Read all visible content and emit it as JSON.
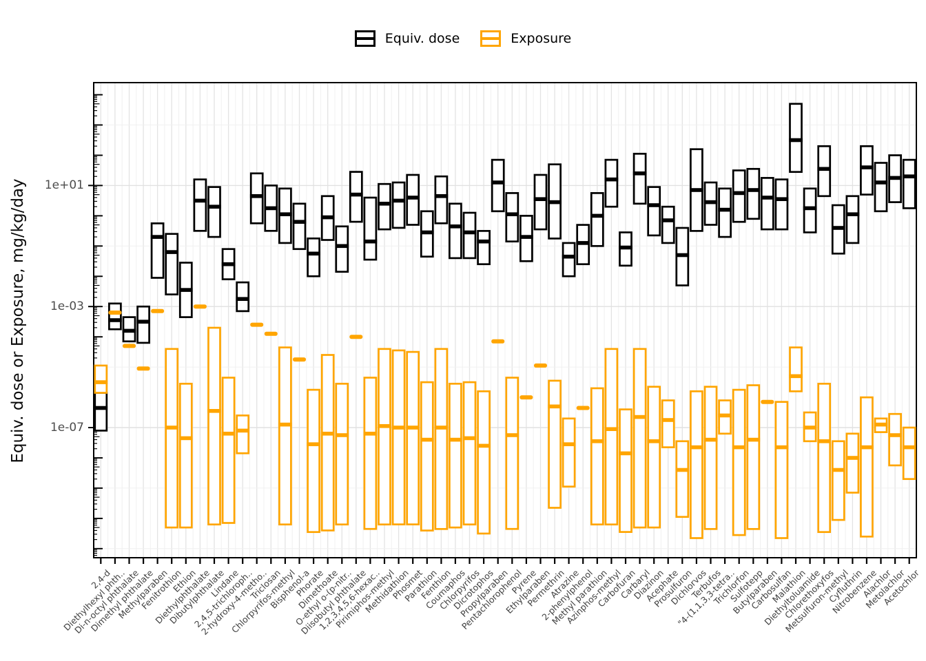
{
  "chart_data": {
    "type": "crossbar-boxplot",
    "title": "",
    "ylabel": "Equiv. dose or Exposure, mg/kg/day",
    "y_scale": "log10",
    "y_tick_labels": [
      "1e+01",
      "1e-03",
      "1e-07"
    ],
    "y_tick_exponents": [
      1,
      -3,
      -7
    ],
    "ylim_log10": [
      4.4,
      -11.3
    ],
    "grid_exponents": [
      3,
      1,
      -1,
      -3,
      -5,
      -7,
      -9,
      -11
    ],
    "legend_position": "top-center",
    "legend": [
      {
        "label": "Equiv. dose",
        "color": "#000000"
      },
      {
        "label": "Exposure",
        "color": "#FFA500"
      }
    ],
    "categories": [
      "2,4-d",
      "Diethylhexyl phth..",
      "Di-n-octyl phthalate",
      "Dimethyl phthalate",
      "Methylparaben",
      "Fenitrothion",
      "Ethion",
      "Diethylphthalate",
      "Dibutylphthalate",
      "Lindane",
      "2,4,5-trichloroph..",
      "2-hydroxy-4-metho..",
      "Triclosan",
      "Chlorpyrifos-methyl",
      "Bisphenol-a",
      "Phorate",
      "Dimethoate",
      "O-ethyl o-(p-nitr..",
      "Diisobutyl phthalate",
      "1,2,3,4,5,6-hexac..",
      "Pirimiphos-methyl",
      "Methidathion",
      "Phosmet",
      "Parathion",
      "Fenthion",
      "Coumaphos",
      "Chlorpyrifos",
      "Dicrotophos",
      "Propylparaben",
      "Pentachlorophenol",
      "Pyrene",
      "Ethylparaben",
      "Permethrin",
      "Atrazine",
      "2-phenylphenol",
      "Methyl parathion",
      "Azinphos-methyl",
      "Carbofuran",
      "Carbaryl",
      "Diazinon",
      "Acephate",
      "Prosulfuron",
      "Dichlorvos",
      "Terbufos",
      "\"4-(1,1,3,3-tetra..",
      "Trichlorfon",
      "Sulfotepp",
      "Butylparaben",
      "Carbosulfan",
      "Malathion",
      "Diethyltoluamide",
      "Chlorethoxyfos",
      "Metsulfuron-methyl",
      "Cyfluthrin",
      "Nitrobenzene",
      "Alachlor",
      "Metolachlor",
      "Acetochlor"
    ],
    "series": [
      {
        "name": "Equiv. dose",
        "color": "#000000",
        "boxes_log10": [
          [
            -7.1,
            -6.35,
            -5.85
          ],
          [
            -3.75,
            -3.45,
            -2.9
          ],
          [
            -4.15,
            -3.8,
            -3.35
          ],
          [
            -4.2,
            -3.5,
            -3.0
          ],
          [
            -2.05,
            -0.7,
            -0.25
          ],
          [
            -2.6,
            -1.2,
            -0.6
          ],
          [
            -3.35,
            -2.45,
            -1.55
          ],
          [
            -0.5,
            0.5,
            1.2
          ],
          [
            -0.7,
            0.3,
            0.95
          ],
          [
            -2.1,
            -1.6,
            -1.1
          ],
          [
            -3.15,
            -2.75,
            -2.2
          ],
          [
            -0.25,
            0.65,
            1.4
          ],
          [
            -0.5,
            0.25,
            1.0
          ],
          [
            -0.9,
            0.05,
            0.9
          ],
          [
            -1.1,
            -0.2,
            0.4
          ],
          [
            -2.0,
            -1.25,
            -0.75
          ],
          [
            -0.8,
            -0.05,
            0.65
          ],
          [
            -1.85,
            -1.0,
            -0.35
          ],
          [
            -0.2,
            0.7,
            1.45
          ],
          [
            -1.45,
            -0.85,
            0.6
          ],
          [
            -0.45,
            0.4,
            1.05
          ],
          [
            -0.4,
            0.5,
            1.1
          ],
          [
            -0.3,
            0.6,
            1.35
          ],
          [
            -1.35,
            -0.55,
            0.15
          ],
          [
            -0.25,
            0.65,
            1.3
          ],
          [
            -1.4,
            -0.35,
            0.4
          ],
          [
            -1.4,
            -0.55,
            0.1
          ],
          [
            -1.6,
            -0.85,
            -0.5
          ],
          [
            0.15,
            1.1,
            1.85
          ],
          [
            -0.85,
            0.05,
            0.75
          ],
          [
            -1.5,
            -0.7,
            0.0
          ],
          [
            -0.45,
            0.55,
            1.35
          ],
          [
            -0.75,
            0.45,
            1.7
          ],
          [
            -2.0,
            -1.35,
            -0.9
          ],
          [
            -1.6,
            -0.9,
            -0.3
          ],
          [
            -1.0,
            0.0,
            0.75
          ],
          [
            0.3,
            1.2,
            1.85
          ],
          [
            -1.65,
            -1.05,
            -0.55
          ],
          [
            0.4,
            1.4,
            2.05
          ],
          [
            -0.65,
            0.35,
            0.95
          ],
          [
            -0.9,
            -0.15,
            0.3
          ],
          [
            -2.3,
            -1.3,
            -0.4
          ],
          [
            -0.5,
            0.85,
            2.2
          ],
          [
            -0.3,
            0.45,
            1.1
          ],
          [
            -0.7,
            0.2,
            0.9
          ],
          [
            -0.2,
            0.75,
            1.5
          ],
          [
            -0.1,
            0.85,
            1.55
          ],
          [
            -0.45,
            0.6,
            1.25
          ],
          [
            -0.45,
            0.55,
            1.2
          ],
          [
            1.45,
            2.5,
            3.7
          ],
          [
            -0.55,
            0.25,
            0.9
          ],
          [
            0.65,
            1.55,
            2.3
          ],
          [
            -1.25,
            -0.4,
            0.35
          ],
          [
            -0.9,
            0.05,
            0.65
          ],
          [
            0.7,
            1.6,
            2.3
          ],
          [
            0.15,
            1.1,
            1.75
          ],
          [
            0.45,
            1.25,
            2.0
          ],
          [
            0.25,
            1.3,
            1.85
          ]
        ]
      },
      {
        "name": "Exposure",
        "color": "#FFA500",
        "boxes_log10": [
          [
            -5.85,
            -5.5,
            -4.95
          ],
          [
            -3.2,
            -3.2,
            -3.2
          ],
          [
            -4.3,
            -4.3,
            -4.3
          ],
          [
            -5.05,
            -5.05,
            -5.05
          ],
          [
            -3.15,
            -3.15,
            -3.15
          ],
          [
            -10.3,
            -7.0,
            -4.4
          ],
          [
            -10.3,
            -7.35,
            -5.55
          ],
          [
            -3.0,
            -3.0,
            -3.0
          ],
          [
            -10.2,
            -6.45,
            -3.7
          ],
          [
            -10.15,
            -7.2,
            -5.35
          ],
          [
            -7.85,
            -7.1,
            -6.6
          ],
          [
            -3.6,
            -3.6,
            -3.6
          ],
          [
            -3.9,
            -3.9,
            -3.9
          ],
          [
            -10.2,
            -6.9,
            -4.35
          ],
          [
            -4.75,
            -4.75,
            -4.75
          ],
          [
            -10.45,
            -7.55,
            -5.75
          ],
          [
            -10.4,
            -7.2,
            -4.6
          ],
          [
            -10.2,
            -7.25,
            -5.55
          ],
          [
            -4.0,
            -4.0,
            -4.0
          ],
          [
            -10.35,
            -7.2,
            -5.35
          ],
          [
            -10.2,
            -6.95,
            -4.4
          ],
          [
            -10.2,
            -7.0,
            -4.45
          ],
          [
            -10.2,
            -7.0,
            -4.5
          ],
          [
            -10.4,
            -7.4,
            -5.5
          ],
          [
            -10.35,
            -7.0,
            -4.4
          ],
          [
            -10.3,
            -7.4,
            -5.55
          ],
          [
            -10.2,
            -7.35,
            -5.5
          ],
          [
            -10.5,
            -7.6,
            -5.8
          ],
          [
            -4.15,
            -4.15,
            -4.15
          ],
          [
            -10.35,
            -7.25,
            -5.35
          ],
          [
            -6.0,
            -6.0,
            -6.0
          ],
          [
            -4.95,
            -4.95,
            -4.95
          ],
          [
            -9.65,
            -6.3,
            -5.45
          ],
          [
            -8.95,
            -7.55,
            -6.7
          ],
          [
            -6.35,
            -6.35,
            -6.35
          ],
          [
            -10.2,
            -7.45,
            -5.7
          ],
          [
            -10.2,
            -7.05,
            -4.4
          ],
          [
            -10.45,
            -7.85,
            -6.4
          ],
          [
            -10.3,
            -6.65,
            -4.4
          ],
          [
            -10.3,
            -7.45,
            -5.65
          ],
          [
            -7.65,
            -6.75,
            -6.1
          ],
          [
            -9.95,
            -8.4,
            -7.45
          ],
          [
            -10.65,
            -7.65,
            -5.8
          ],
          [
            -10.35,
            -7.4,
            -5.65
          ],
          [
            -7.2,
            -6.6,
            -6.1
          ],
          [
            -10.55,
            -7.65,
            -5.75
          ],
          [
            -10.35,
            -7.4,
            -5.6
          ],
          [
            -6.15,
            -6.15,
            -6.15
          ],
          [
            -10.65,
            -7.65,
            -6.15
          ],
          [
            -5.8,
            -5.3,
            -4.35
          ],
          [
            -7.45,
            -7.0,
            -6.5
          ],
          [
            -10.45,
            -7.45,
            -5.55
          ],
          [
            -10.05,
            -8.4,
            -7.45
          ],
          [
            -9.15,
            -8.0,
            -7.2
          ],
          [
            -10.6,
            -7.65,
            -6.0
          ],
          [
            -7.15,
            -6.9,
            -6.7
          ],
          [
            -8.25,
            -7.25,
            -6.55
          ],
          [
            -8.7,
            -7.65,
            -7.0
          ]
        ]
      }
    ]
  }
}
